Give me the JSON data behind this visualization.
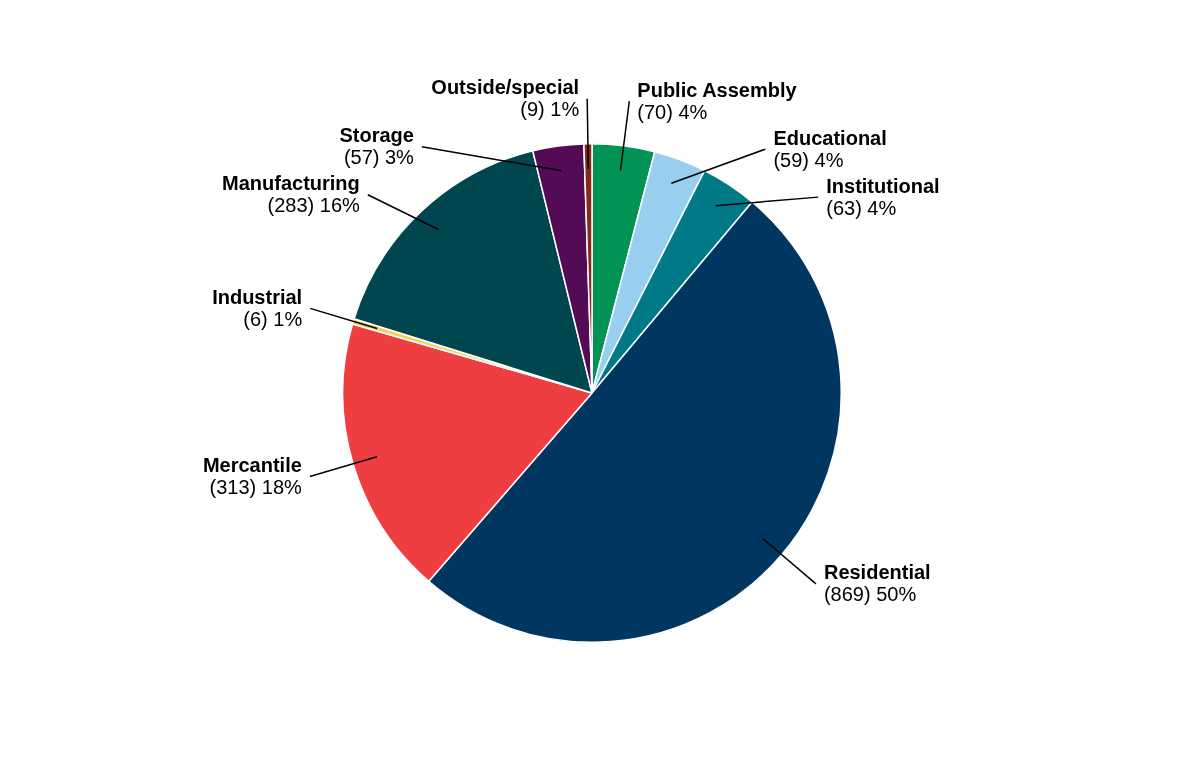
{
  "chart_data": {
    "type": "pie",
    "categories": [
      "Public Assembly",
      "Educational",
      "Institutional",
      "Residential",
      "Mercantile",
      "Industrial",
      "Manufacturing",
      "Storage",
      "Outside/special"
    ],
    "values": [
      70,
      59,
      63,
      869,
      313,
      6,
      283,
      57,
      9
    ],
    "value_labels": [
      "(70) 4%",
      "(59) 4%",
      "(63) 4%",
      "(869) 50%",
      "(313) 18%",
      "(6) 1%",
      "(283) 16%",
      "(57) 3%",
      "(9) 1%"
    ],
    "colors": [
      "#009354",
      "#99cfee",
      "#007a87",
      "#003660",
      "#ee3e42",
      "#ffcc4e",
      "#00464f",
      "#530b55",
      "#86291a"
    ],
    "legend": false
  }
}
